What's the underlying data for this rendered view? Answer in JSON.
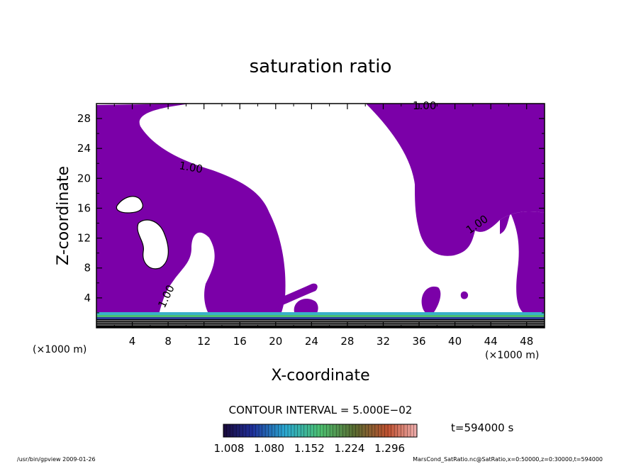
{
  "chart_data": {
    "type": "contour",
    "title": "saturation ratio",
    "xlabel": "X-coordinate",
    "ylabel": "Z-coordinate",
    "x_unit_left": "(×1000 m)",
    "x_unit_right": "(×1000 m)",
    "xlim": [
      0,
      50
    ],
    "ylim": [
      0,
      30
    ],
    "x_ticks": [
      4,
      8,
      12,
      16,
      20,
      24,
      28,
      32,
      36,
      40,
      44,
      48
    ],
    "y_ticks": [
      4,
      8,
      12,
      16,
      20,
      24,
      28
    ],
    "contour_interval_text": "CONTOUR INTERVAL = 5.000E−02",
    "contour_labels": [
      "1.00",
      "1.00",
      "1.00",
      "1.00"
    ],
    "colorbar_ticks": [
      "1.008",
      "1.080",
      "1.152",
      "1.224",
      "1.296"
    ],
    "colorbar_range": [
      1.008,
      1.296
    ],
    "time_text": "t=594000 s",
    "fill_color": "#7b00a8",
    "footer_left": "/usr/bin/gpview  2009-01-26",
    "footer_right": "MarsCond_SatRatio.nc@SatRatio,x=0:50000,z=0:30000,t=594000"
  }
}
